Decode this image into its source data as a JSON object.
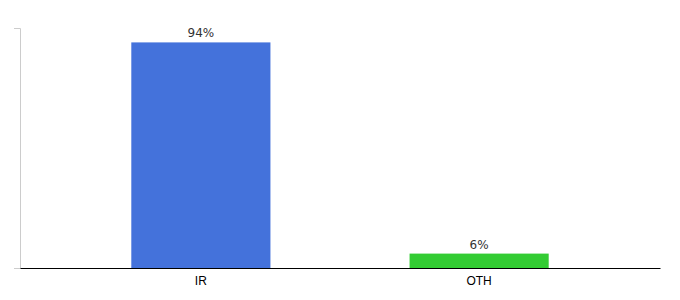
{
  "chart_data": {
    "type": "bar",
    "categories": [
      "IR",
      "OTH"
    ],
    "values": [
      94,
      6
    ],
    "value_labels": [
      "94%",
      "6%"
    ],
    "colors": [
      "#4472db",
      "#33cc33"
    ],
    "ylim": [
      0,
      100
    ],
    "data_labels": true,
    "tick_labels": "x",
    "grid": false
  }
}
